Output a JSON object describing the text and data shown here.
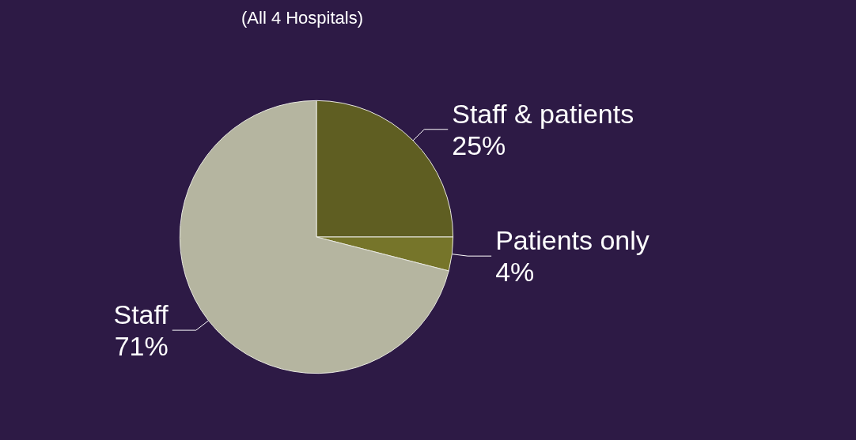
{
  "chart_data": {
    "type": "pie",
    "subtitle": "(All 4 Hospitals)",
    "categories": [
      "Staff & patients",
      "Patients only",
      "Staff"
    ],
    "values": [
      25,
      4,
      71
    ],
    "colors": [
      "#5f5e22",
      "#76752a",
      "#b5b5a0"
    ],
    "value_labels": [
      "25%",
      "4%",
      "71%"
    ],
    "legend": false
  }
}
